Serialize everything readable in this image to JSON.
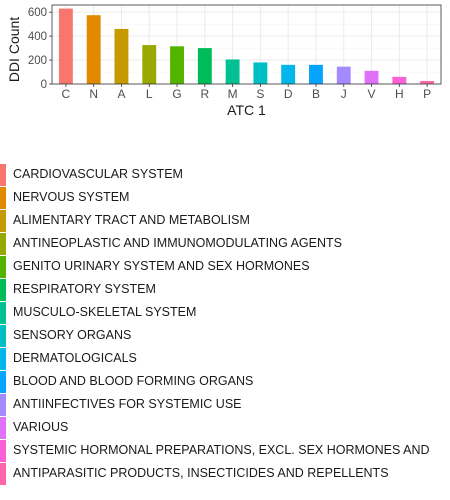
{
  "chart_data": {
    "type": "bar",
    "categories": [
      "C",
      "N",
      "A",
      "L",
      "G",
      "R",
      "M",
      "S",
      "D",
      "B",
      "J",
      "V",
      "H",
      "P"
    ],
    "values": [
      630,
      575,
      460,
      325,
      315,
      300,
      205,
      180,
      160,
      160,
      145,
      110,
      60,
      25
    ],
    "colors": [
      "#F8766D",
      "#E38900",
      "#C49A00",
      "#99A800",
      "#53B400",
      "#00BC56",
      "#00C094",
      "#00BFC4",
      "#00B6EB",
      "#06A4FF",
      "#A58AFF",
      "#DF70F8",
      "#FB61D7",
      "#FF66A8"
    ],
    "xlabel": "ATC 1",
    "ylabel": "DDI Count",
    "ylim": [
      0,
      660
    ],
    "yticks": [
      0,
      200,
      400,
      600
    ],
    "grid": true,
    "legend": {
      "placement": "bottom",
      "entries": [
        "CARDIOVASCULAR SYSTEM",
        "NERVOUS SYSTEM",
        "ALIMENTARY TRACT AND METABOLISM",
        "ANTINEOPLASTIC AND IMMUNOMODULATING AGENTS",
        "GENITO URINARY SYSTEM AND SEX HORMONES",
        "RESPIRATORY SYSTEM",
        "MUSCULO-SKELETAL SYSTEM",
        "SENSORY ORGANS",
        "DERMATOLOGICALS",
        "BLOOD AND BLOOD FORMING ORGANS",
        "ANTIINFECTIVES FOR SYSTEMIC USE",
        "VARIOUS",
        "SYSTEMIC HORMONAL PREPARATIONS, EXCL. SEX HORMONES AND",
        "ANTIPARASITIC PRODUCTS, INSECTICIDES AND REPELLENTS"
      ]
    }
  }
}
